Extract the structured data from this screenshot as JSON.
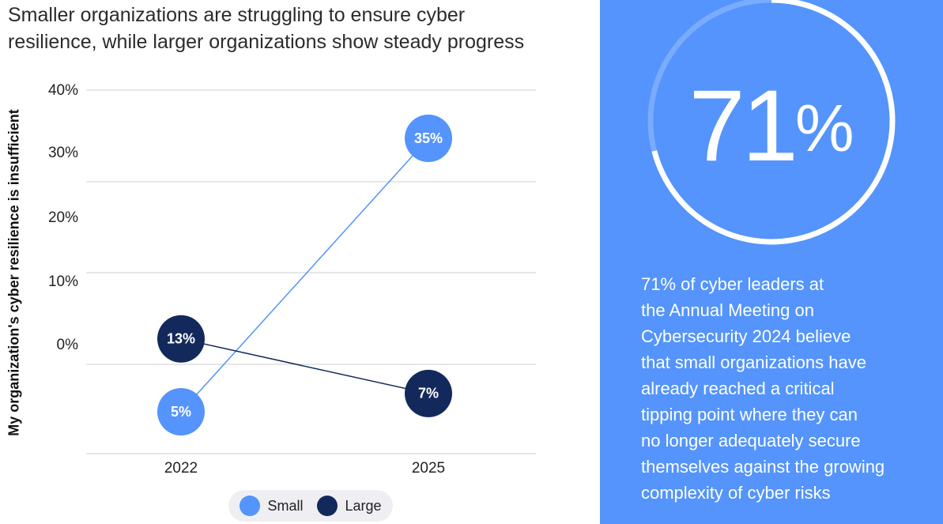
{
  "chart_data": {
    "type": "line",
    "title": "Smaller organizations are struggling to ensure cyber resilience, while larger organizations show steady progress",
    "title_lines": [
      "Smaller organizations are struggling to ensure cyber",
      "resilience, while larger organizations show steady progress"
    ],
    "ylabel": "My organization's cyber resilience is insufficient",
    "xlabel": "",
    "categories": [
      "2022",
      "2025"
    ],
    "yticks": [
      "40%",
      "30%",
      "20%",
      "10%",
      "0%"
    ],
    "grid": true,
    "legend_position": "bottom",
    "series": [
      {
        "name": "Small",
        "values": [
          5,
          35
        ],
        "labels": [
          "5%",
          "35%"
        ],
        "color": "#5494fc"
      },
      {
        "name": "Large",
        "values": [
          13,
          7
        ],
        "labels": [
          "13%",
          "7%"
        ],
        "color": "#13295c"
      }
    ]
  },
  "callout": {
    "number": "71",
    "percent_sign": "%",
    "ring_fraction": 0.71,
    "ring_color": "#ffffff",
    "ring_track_color": "#79abff",
    "panel_color": "#5494fc",
    "text": "71% of cyber leaders at the Annual Meeting on Cybersecurity 2024 believe that small organizations have already reached a critical tipping point where they can no longer adequately secure themselves against the growing complexity of cyber risks",
    "text_lines": [
      "71% of cyber leaders at",
      "the Annual Meeting on",
      "Cybersecurity 2024 believe",
      "that small organizations have",
      "already reached a critical",
      "tipping point where they can",
      "no longer adequately secure",
      "themselves against the growing",
      "complexity of cyber risks"
    ]
  }
}
